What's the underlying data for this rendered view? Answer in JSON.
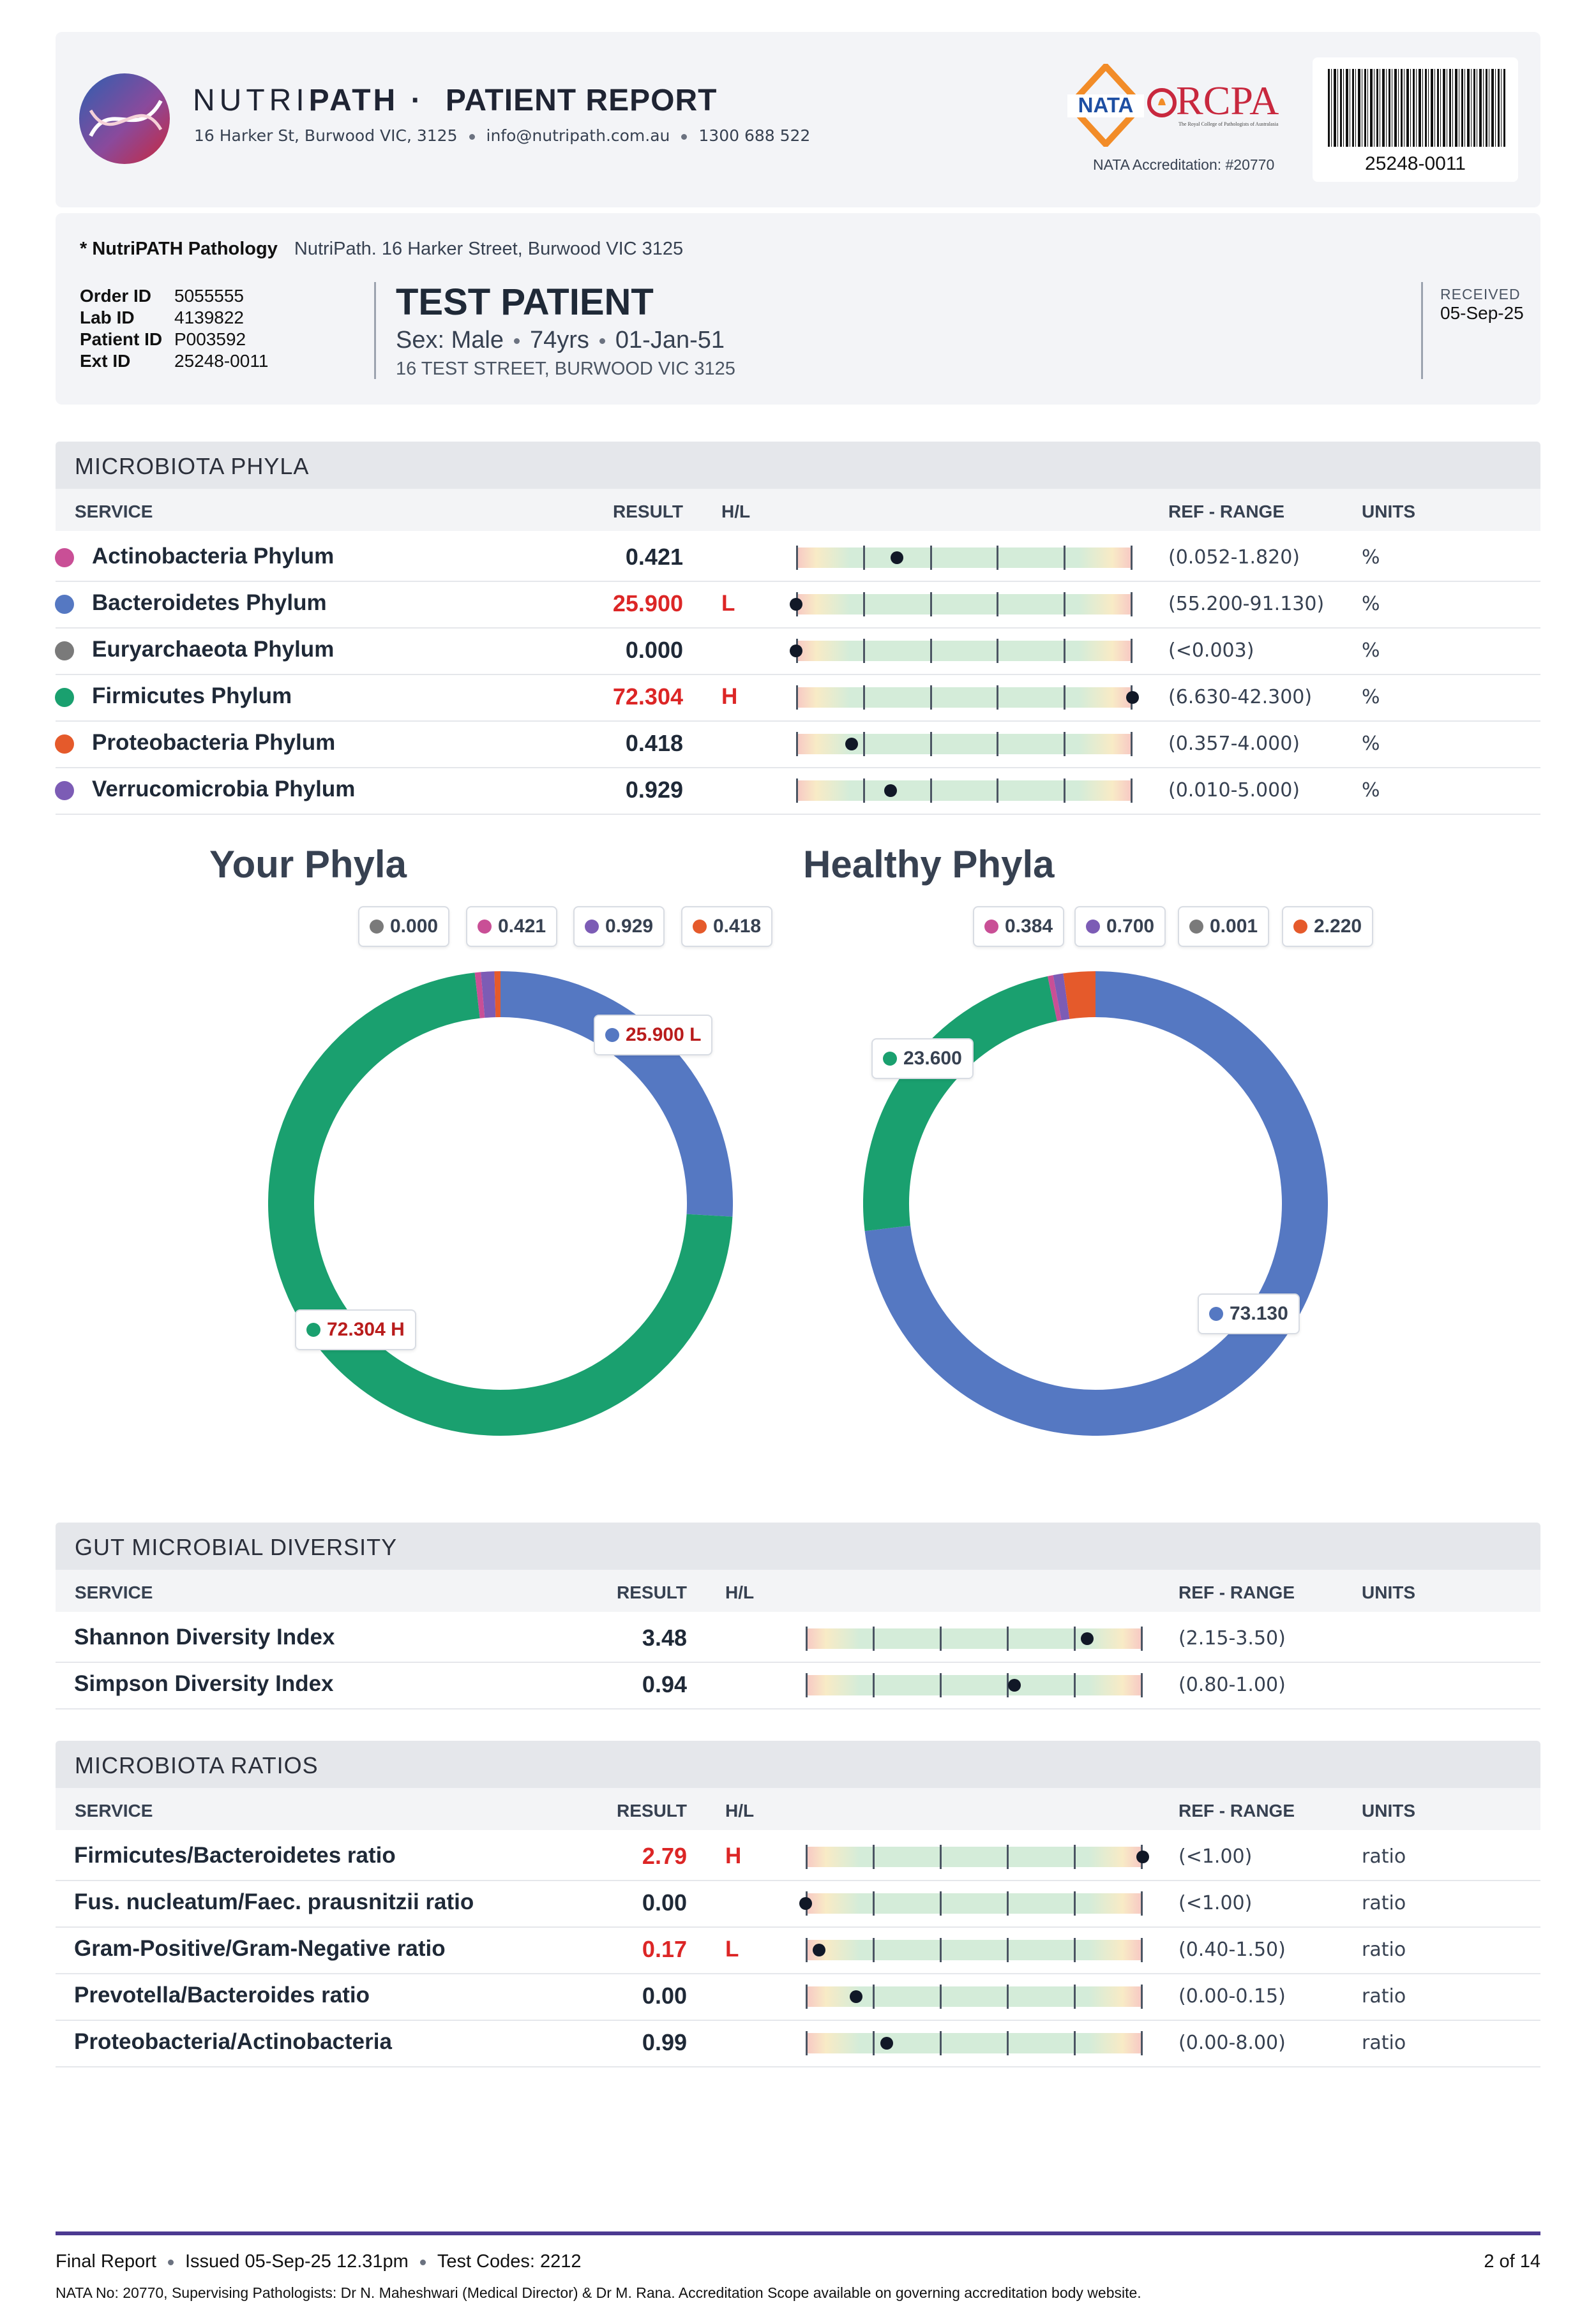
{
  "header": {
    "brand_light": "NUTRI",
    "brand_bold": "PATH",
    "brand_sep": "·",
    "report_title": "PATIENT REPORT",
    "address": "16 Harker St, Burwood VIC, 3125",
    "email": "info@nutripath.com.au",
    "phone": "1300 688 522",
    "nata_text": "NATA",
    "rcpa_text": "RCPA",
    "rcpa_sub": "The Royal College of Pathologists of Australasia",
    "nata_accreditation": "NATA Accreditation: #20770",
    "barcode_number": "25248-0011"
  },
  "patient": {
    "lab_name": "* NutriPATH Pathology",
    "lab_address": "NutriPath. 16 Harker Street, Burwood VIC 3125",
    "ids": [
      {
        "label": "Order ID",
        "value": "5055555"
      },
      {
        "label": "Lab ID",
        "value": "4139822"
      },
      {
        "label": "Patient ID",
        "value": "P003592"
      },
      {
        "label": "Ext ID",
        "value": "25248-0011"
      }
    ],
    "name": "TEST PATIENT",
    "sex": "Sex: Male",
    "age": "74yrs",
    "dob": "01-Jan-51",
    "address": "16 TEST STREET, BURWOOD VIC 3125",
    "received_label": "RECEIVED",
    "received_date": "05-Sep-25"
  },
  "columns": {
    "service": "SERVICE",
    "result": "RESULT",
    "hl": "H/L",
    "ref": "REF - RANGE",
    "units": "UNITS"
  },
  "phyla": {
    "title": "MICROBIOTA PHYLA",
    "rows": [
      {
        "service": "Actinobacteria Phylum",
        "result": "0.421",
        "flag": "",
        "ref": "(0.052-1.820)",
        "units": "%",
        "color": "#c94f96",
        "marker": 0.3
      },
      {
        "service": "Bacteroidetes Phylum",
        "result": "25.900",
        "flag": "L",
        "ref": "(55.200-91.130)",
        "units": "%",
        "color": "#5578c2",
        "marker": 0.0
      },
      {
        "service": "Euryarchaeota Phylum",
        "result": "0.000",
        "flag": "",
        "ref": "(<0.003)",
        "units": "%",
        "color": "#7a7a7a",
        "marker": 0.0
      },
      {
        "service": "Firmicutes Phylum",
        "result": "72.304",
        "flag": "H",
        "ref": "(6.630-42.300)",
        "units": "%",
        "color": "#1aa06f",
        "marker": 1.0
      },
      {
        "service": "Proteobacteria Phylum",
        "result": "0.418",
        "flag": "",
        "ref": "(0.357-4.000)",
        "units": "%",
        "color": "#e55a2b",
        "marker": 0.165
      },
      {
        "service": "Verrucomicrobia Phylum",
        "result": "0.929",
        "flag": "",
        "ref": "(0.010-5.000)",
        "units": "%",
        "color": "#7c5cb5",
        "marker": 0.28
      }
    ]
  },
  "chart_data": [
    {
      "type": "pie",
      "title": "Your Phyla",
      "series": [
        {
          "name": "Bacteroidetes Phylum",
          "value": 25.9,
          "label": "25.900 L",
          "color": "#5578c2"
        },
        {
          "name": "Firmicutes Phylum",
          "value": 72.304,
          "label": "72.304 H",
          "color": "#1aa06f"
        },
        {
          "name": "Euryarchaeota Phylum",
          "value": 0.0,
          "label": "0.000",
          "color": "#7a7a7a"
        },
        {
          "name": "Actinobacteria Phylum",
          "value": 0.421,
          "label": "0.421",
          "color": "#c94f96"
        },
        {
          "name": "Verrucomicrobia Phylum",
          "value": 0.929,
          "label": "0.929",
          "color": "#7c5cb5"
        },
        {
          "name": "Proteobacteria Phylum",
          "value": 0.418,
          "label": "0.418",
          "color": "#e55a2b"
        }
      ]
    },
    {
      "type": "pie",
      "title": "Healthy Phyla",
      "series": [
        {
          "name": "Bacteroidetes Phylum",
          "value": 73.13,
          "label": "73.130",
          "color": "#5578c2"
        },
        {
          "name": "Firmicutes Phylum",
          "value": 23.6,
          "label": "23.600",
          "color": "#1aa06f"
        },
        {
          "name": "Actinobacteria Phylum",
          "value": 0.384,
          "label": "0.384",
          "color": "#c94f96"
        },
        {
          "name": "Verrucomicrobia Phylum",
          "value": 0.7,
          "label": "0.700",
          "color": "#7c5cb5"
        },
        {
          "name": "Euryarchaeota Phylum",
          "value": 0.001,
          "label": "0.001",
          "color": "#7a7a7a"
        },
        {
          "name": "Proteobacteria Phylum",
          "value": 2.22,
          "label": "2.220",
          "color": "#e55a2b"
        }
      ]
    }
  ],
  "diversity": {
    "title": "GUT MICROBIAL DIVERSITY",
    "rows": [
      {
        "service": "Shannon Diversity Index",
        "result": "3.48",
        "flag": "",
        "ref": "(2.15-3.50)",
        "units": "",
        "marker": 0.835
      },
      {
        "service": "Simpson Diversity Index",
        "result": "0.94",
        "flag": "",
        "ref": "(0.80-1.00)",
        "units": "",
        "marker": 0.62
      }
    ]
  },
  "ratios": {
    "title": "MICROBIOTA RATIOS",
    "rows": [
      {
        "service": "Firmicutes/Bacteroidetes ratio",
        "result": "2.79",
        "flag": "H",
        "ref": "(<1.00)",
        "units": "ratio",
        "marker": 1.0
      },
      {
        "service": "Fus. nucleatum/Faec. prausnitzii ratio",
        "result": "0.00",
        "flag": "",
        "ref": "(<1.00)",
        "units": "ratio",
        "marker": 0.0
      },
      {
        "service": "Gram-Positive/Gram-Negative ratio",
        "result": "0.17",
        "flag": "L",
        "ref": "(0.40-1.50)",
        "units": "ratio",
        "marker": 0.04
      },
      {
        "service": "Prevotella/Bacteroides ratio",
        "result": "0.00",
        "flag": "",
        "ref": "(0.00-0.15)",
        "units": "ratio",
        "marker": 0.15
      },
      {
        "service": "Proteobacteria/Actinobacteria",
        "result": "0.99",
        "flag": "",
        "ref": "(0.00-8.00)",
        "units": "ratio",
        "marker": 0.24
      }
    ]
  },
  "footer": {
    "status": "Final Report",
    "issued": "Issued 05-Sep-25 12.31pm",
    "codes": "Test Codes: 2212",
    "page": "2 of 14",
    "note": "NATA No: 20770, Supervising Pathologists: Dr N. Maheshwari (Medical Director) & Dr M. Rana. Accreditation Scope available on governing accreditation body website."
  },
  "colors": {
    "high_low": "#dc2626",
    "footer_line": "#4c3a91"
  }
}
